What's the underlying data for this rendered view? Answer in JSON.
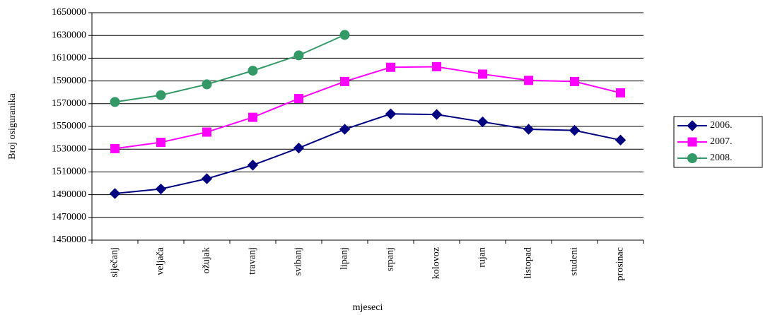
{
  "chart_data": {
    "type": "line",
    "x_label": "mjeseci",
    "y_label": "Broj osiguranika",
    "categories": [
      "siječanj",
      "veljača",
      "ožujak",
      "travanj",
      "svibanj",
      "lipanj",
      "srpanj",
      "kolovoz",
      "rujan",
      "listopad",
      "studeni",
      "prosinac"
    ],
    "series": [
      {
        "name": "2006.",
        "color": "#000080",
        "marker": "diamond",
        "values": [
          1491000,
          1495000,
          1504000,
          1516000,
          1531000,
          1547500,
          1561000,
          1560500,
          1554000,
          1547500,
          1546500,
          1538000
        ]
      },
      {
        "name": "2007.",
        "color": "#ff00ff",
        "marker": "square",
        "values": [
          1530500,
          1536000,
          1545000,
          1558000,
          1574500,
          1589500,
          1602000,
          1602500,
          1596000,
          1590500,
          1589500,
          1579500
        ]
      },
      {
        "name": "2008.",
        "color": "#339966",
        "marker": "circle",
        "values": [
          1571500,
          1577500,
          1587000,
          1599000,
          1612500,
          1630500,
          null,
          null,
          null,
          null,
          null,
          null
        ]
      }
    ],
    "ylim": [
      1450000,
      1650000
    ],
    "yticks": [
      1450000,
      1470000,
      1490000,
      1510000,
      1530000,
      1550000,
      1570000,
      1590000,
      1610000,
      1630000,
      1650000
    ],
    "grid": true,
    "legend": "right"
  }
}
